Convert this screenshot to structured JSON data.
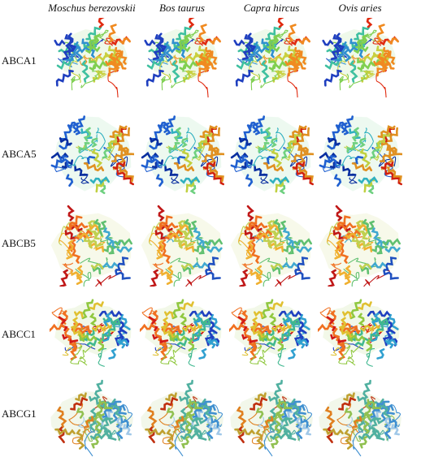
{
  "columns": [
    "Moschus berezovskii",
    "Bos taurus",
    "Capra hircus",
    "Ovis aries"
  ],
  "rows": [
    {
      "label": "ABCA1",
      "shape": "abca1",
      "palette": [
        "#1f3fbf",
        "#2f8fd0",
        "#3fc0a0",
        "#7fcf50",
        "#c8d040",
        "#f08a20",
        "#e02a10"
      ]
    },
    {
      "label": "ABCA5",
      "shape": "abca5",
      "palette": [
        "#0a2fa0",
        "#2060d0",
        "#30b0c0",
        "#6fd080",
        "#c0d040",
        "#e09020",
        "#d02010"
      ]
    },
    {
      "label": "ABCB5",
      "shape": "abcb5",
      "palette": [
        "#c01818",
        "#f07020",
        "#f0b030",
        "#c0d050",
        "#60c070",
        "#40a8d0",
        "#2050c0"
      ]
    },
    {
      "label": "ABCC1",
      "shape": "abcc1",
      "palette": [
        "#d01818",
        "#f07020",
        "#e0c030",
        "#90c840",
        "#40b890",
        "#30a0d0",
        "#2040c0"
      ]
    },
    {
      "label": "ABCG1",
      "shape": "abcg1",
      "palette": [
        "#c03010",
        "#e08020",
        "#c0a030",
        "#90c050",
        "#50b0a0",
        "#4090d0",
        "#a0c8e8"
      ]
    }
  ]
}
